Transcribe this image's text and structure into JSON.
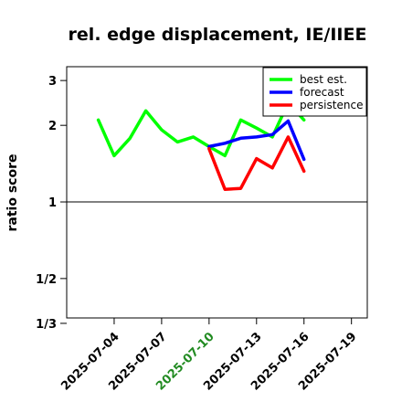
{
  "chart_data": {
    "type": "line",
    "title": "rel. edge displacement, IE/IIEE",
    "ylabel": "ratio score",
    "xlabel": "",
    "y_scale": "log",
    "ylim": [
      0.35,
      3.4
    ],
    "xlim": [
      "2025-07-01",
      "2025-07-20"
    ],
    "y_ticks": [
      {
        "value": 3,
        "label": "3"
      },
      {
        "value": 2,
        "label": "2"
      },
      {
        "value": 1,
        "label": "1"
      },
      {
        "value": 0.5,
        "label": "1/2"
      },
      {
        "value": 0.3333,
        "label": "1/3"
      }
    ],
    "x_ticks": [
      {
        "date": "2025-07-04",
        "label": "2025-07-04",
        "color": "#000000"
      },
      {
        "date": "2025-07-07",
        "label": "2025-07-07",
        "color": "#000000"
      },
      {
        "date": "2025-07-10",
        "label": "2025-07-10",
        "color": "#228B22"
      },
      {
        "date": "2025-07-13",
        "label": "2025-07-13",
        "color": "#000000"
      },
      {
        "date": "2025-07-16",
        "label": "2025-07-16",
        "color": "#000000"
      },
      {
        "date": "2025-07-19",
        "label": "2025-07-19",
        "color": "#000000"
      }
    ],
    "reference_line": 1,
    "legend_position": "top-right",
    "series": [
      {
        "name": "best est.",
        "color": "#00ff00",
        "x": [
          "2025-07-03",
          "2025-07-04",
          "2025-07-05",
          "2025-07-06",
          "2025-07-07",
          "2025-07-08",
          "2025-07-09",
          "2025-07-10",
          "2025-07-11",
          "2025-07-12",
          "2025-07-13",
          "2025-07-14",
          "2025-07-15",
          "2025-07-16"
        ],
        "y": [
          2.1,
          1.52,
          1.78,
          2.28,
          1.92,
          1.72,
          1.8,
          1.65,
          1.52,
          2.1,
          1.95,
          1.8,
          2.45,
          2.1
        ]
      },
      {
        "name": "forecast",
        "color": "#0000ff",
        "x": [
          "2025-07-10",
          "2025-07-11",
          "2025-07-12",
          "2025-07-13",
          "2025-07-14",
          "2025-07-15",
          "2025-07-16"
        ],
        "y": [
          1.65,
          1.7,
          1.78,
          1.8,
          1.84,
          2.08,
          1.47
        ]
      },
      {
        "name": "persistence",
        "color": "#ff0000",
        "x": [
          "2025-07-10",
          "2025-07-11",
          "2025-07-12",
          "2025-07-13",
          "2025-07-14",
          "2025-07-15",
          "2025-07-16"
        ],
        "y": [
          1.62,
          1.12,
          1.13,
          1.48,
          1.36,
          1.8,
          1.32
        ]
      }
    ]
  }
}
